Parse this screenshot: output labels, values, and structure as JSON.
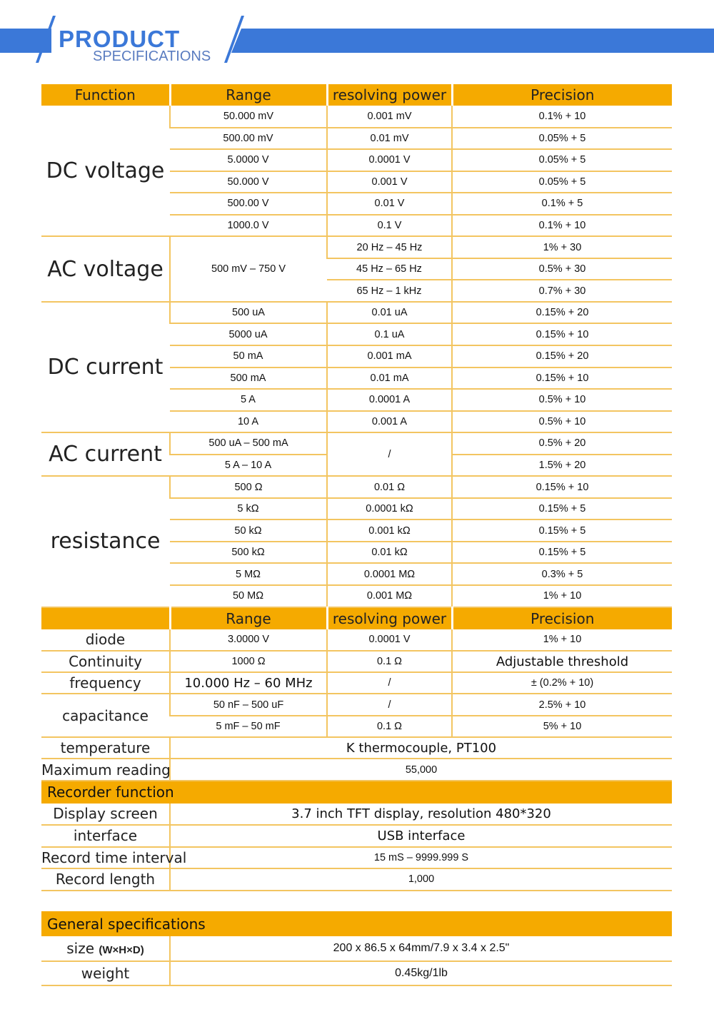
{
  "banner": {
    "title": "PRODUCT",
    "subtitle": "SPECIFICATIONS",
    "accent": "#3b78d8"
  },
  "colors": {
    "header": "#f5aa00",
    "line": "#f3c561"
  },
  "table1": {
    "header": [
      "Function",
      "Range",
      "resolving power",
      "Precision"
    ],
    "groups": [
      {
        "function": "DC voltage",
        "rows": [
          [
            "50.000 mV",
            "0.001 mV",
            "0.1% + 10"
          ],
          [
            "500.00 mV",
            "0.01 mV",
            "0.05% + 5"
          ],
          [
            "5.0000 V",
            "0.0001 V",
            "0.05% + 5"
          ],
          [
            "50.000 V",
            "0.001 V",
            "0.05% + 5"
          ],
          [
            "500.00 V",
            "0.01 V",
            "0.1% + 5"
          ],
          [
            "1000.0 V",
            "0.1 V",
            "0.1% + 10"
          ]
        ]
      },
      {
        "function": "AC voltage",
        "rows": [
          [
            {
              "t": "500 mV – 750 V",
              "rs": 3
            },
            "20 Hz – 45 Hz",
            "1% + 30"
          ],
          [
            null,
            "45 Hz – 65 Hz",
            "0.5% + 30"
          ],
          [
            null,
            "65 Hz – 1 kHz",
            "0.7% + 30"
          ]
        ]
      },
      {
        "function": "DC current",
        "rows": [
          [
            "500 uA",
            "0.01 uA",
            "0.15% + 20"
          ],
          [
            "5000 uA",
            "0.1 uA",
            "0.15% + 10"
          ],
          [
            "50 mA",
            "0.001 mA",
            "0.15% + 20"
          ],
          [
            "500 mA",
            "0.01 mA",
            "0.15% + 10"
          ],
          [
            "5 A",
            "0.0001 A",
            "0.5% + 10"
          ],
          [
            "10 A",
            "0.001 A",
            "0.5% + 10"
          ]
        ]
      },
      {
        "function": "AC current",
        "rows": [
          [
            "500 uA – 500 mA",
            {
              "t": "/",
              "rs": 2
            },
            "0.5% + 20"
          ],
          [
            "5 A – 10 A",
            null,
            "1.5% + 20"
          ]
        ]
      },
      {
        "function": "resistance",
        "rows": [
          [
            "500 Ω",
            "0.01 Ω",
            "0.15% + 10"
          ],
          [
            "5 kΩ",
            "0.0001 kΩ",
            "0.15% + 5"
          ],
          [
            "50 kΩ",
            "0.001 kΩ",
            "0.15% + 5"
          ],
          [
            "500 kΩ",
            "0.01 kΩ",
            "0.15% + 5"
          ],
          [
            "5 MΩ",
            "0.0001 MΩ",
            "0.3% + 5"
          ],
          [
            "50 MΩ",
            "0.001 MΩ",
            "1% + 10"
          ]
        ]
      }
    ]
  },
  "table2": {
    "header": [
      "",
      "Range",
      "resolving power",
      "Precision"
    ],
    "rows": [
      {
        "label": "diode",
        "cells": [
          "3.0000 V",
          "0.0001 V",
          "1% + 10"
        ]
      },
      {
        "label": "Continuity",
        "cells": [
          "1000 Ω",
          "0.1 Ω",
          "Adjustable threshold"
        ]
      },
      {
        "label": "frequency",
        "cells": [
          "10.000 Hz – 60 MHz",
          "/",
          "± (0.2% + 10)"
        ]
      },
      {
        "label": "capacitance",
        "cells": [
          "50 nF – 500 uF",
          "/",
          "2.5% + 10"
        ],
        "sub": [
          "5 mF – 50 mF",
          "0.1 Ω",
          "5% + 10"
        ]
      },
      {
        "label": "temperature",
        "value": "K thermocouple, PT100"
      },
      {
        "label": "Maximum reading",
        "value": "55,000"
      }
    ]
  },
  "recorder": {
    "title": "Recorder function",
    "rows": [
      {
        "label": "Display screen",
        "value": "3.7 inch TFT display, resolution 480*320"
      },
      {
        "label": "interface",
        "value": "USB interface"
      },
      {
        "label": "Record time interval",
        "value": "15 mS – 9999.999 S"
      },
      {
        "label": "Record length",
        "value": "1,000"
      }
    ]
  },
  "general": {
    "title": "General specifications",
    "rows": [
      {
        "label": "size",
        "label_suffix": "(W×H×D)",
        "value": "200 x 86.5 x 64mm/7.9 x 3.4 x 2.5\""
      },
      {
        "label": "weight",
        "value": "0.45kg/1lb"
      }
    ]
  }
}
